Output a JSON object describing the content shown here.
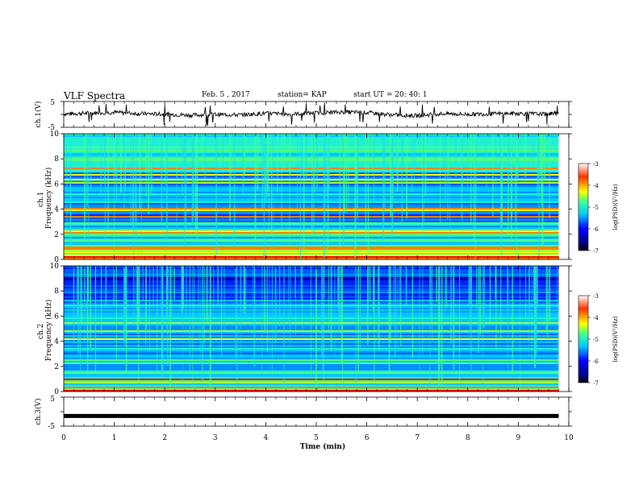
{
  "header": {
    "title": "VLF Spectra",
    "date": "Feb. 5 , 2017",
    "station": "station= KAP",
    "start": "start  UT =   20: 40: 1"
  },
  "colors": {
    "line": "#000000",
    "colormap": [
      "#00007f",
      "#0000ff",
      "#0066ff",
      "#00ccff",
      "#33ff99",
      "#66ff00",
      "#ffff00",
      "#ff9900",
      "#ff0000",
      "#ffffff"
    ]
  },
  "chart_data": [
    {
      "type": "line",
      "panel": "ch1-waveform",
      "ylabel": "ch.1(V)",
      "ylim": [
        -5,
        5
      ],
      "yticks": [
        "5",
        "-5"
      ],
      "xlim": [
        0,
        10
      ],
      "x": [
        0,
        0.5,
        1,
        1.5,
        2,
        2.5,
        3,
        3.5,
        4,
        4.5,
        5,
        5.5,
        6,
        6.5,
        7,
        7.5,
        8,
        8.5,
        9,
        9.5,
        9.8
      ],
      "y": [
        0.2,
        0.5,
        0.8,
        0.3,
        0.1,
        -0.3,
        0.0,
        -0.2,
        0.4,
        0.1,
        0.6,
        0.9,
        0.7,
        -0.2,
        -0.5,
        0.3,
        0.0,
        0.2,
        0.4,
        0.1,
        0.5
      ]
    },
    {
      "type": "heatmap",
      "panel": "ch1-spectrogram",
      "ylabel": "ch.1\nFrequency (kHz)",
      "ylim": [
        0,
        10
      ],
      "yticks": [
        "0",
        "2",
        "4",
        "6",
        "8",
        "10"
      ],
      "xlim": [
        0,
        9.8
      ],
      "colorbar": {
        "label": "log(PSD)(V²/Hz)",
        "range": [
          -7,
          -3
        ],
        "ticks": [
          "-3",
          "-4",
          "-5",
          "-6",
          "-7"
        ]
      }
    },
    {
      "type": "heatmap",
      "panel": "ch2-spectrogram",
      "ylabel": "ch.2\nFrequency (kHz)",
      "ylim": [
        0,
        10
      ],
      "yticks": [
        "0",
        "2",
        "4",
        "6",
        "8",
        "10"
      ],
      "xlim": [
        0,
        9.8
      ],
      "colorbar": {
        "label": "log(PSD)(V²/Hz)",
        "range": [
          -7,
          -3
        ],
        "ticks": [
          "-3",
          "-4",
          "-5",
          "-6",
          "-7"
        ]
      }
    },
    {
      "type": "line",
      "panel": "ch3-waveform",
      "ylabel": "ch.3(V)",
      "ylim": [
        -5,
        5
      ],
      "yticks": [
        "5",
        "-5"
      ],
      "xlim": [
        0,
        10
      ],
      "x": [
        0,
        9.8
      ],
      "y": [
        -1.5,
        -1.5
      ]
    }
  ],
  "xaxis": {
    "label": "Time  (min)",
    "ticks": [
      "0",
      "1",
      "2",
      "3",
      "4",
      "5",
      "6",
      "7",
      "8",
      "9",
      "10"
    ]
  }
}
